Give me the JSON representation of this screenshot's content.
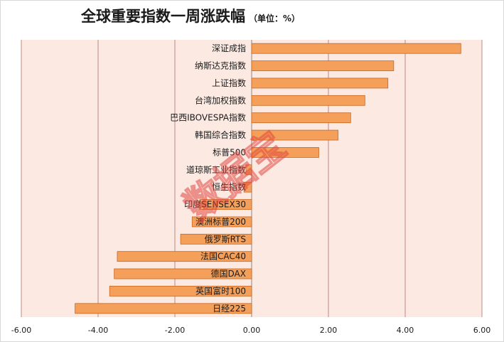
{
  "chart_data": {
    "type": "bar",
    "orientation": "horizontal",
    "title": "全球重要指数一周涨跌幅",
    "unit": "（单位：%）",
    "categories": [
      "深证成指",
      "纳斯达克指数",
      "上证指数",
      "台湾加权指数",
      "巴西IBOVESPA指数",
      "韩国综合指数",
      "标普500",
      "道琼斯工业指数",
      "恒生指数",
      "印度SENSEX30",
      "澳洲标普200",
      "俄罗斯RTS",
      "法国CAC40",
      "德国DAX",
      "英国富时100",
      "日经225"
    ],
    "values": [
      5.45,
      3.7,
      3.55,
      2.95,
      2.58,
      2.25,
      1.75,
      -0.15,
      -0.2,
      -1.35,
      -1.55,
      -1.85,
      -3.5,
      -3.58,
      -3.7,
      -4.6
    ],
    "xlim": [
      -6,
      6
    ],
    "ticks": [
      "-6.00",
      "-4.00",
      "-2.00",
      "0.00",
      "2.00",
      "4.00",
      "6.00"
    ],
    "tick_values": [
      -6,
      -4,
      -2,
      0,
      2,
      4,
      6
    ],
    "grid": true,
    "colors": {
      "bar_fill": "#f5a05a",
      "bar_stroke": "#c8661e",
      "plot_bg": "#fbe9e2",
      "gridline": "#b07070",
      "axis": "#888888"
    }
  },
  "watermark": "数据宝"
}
